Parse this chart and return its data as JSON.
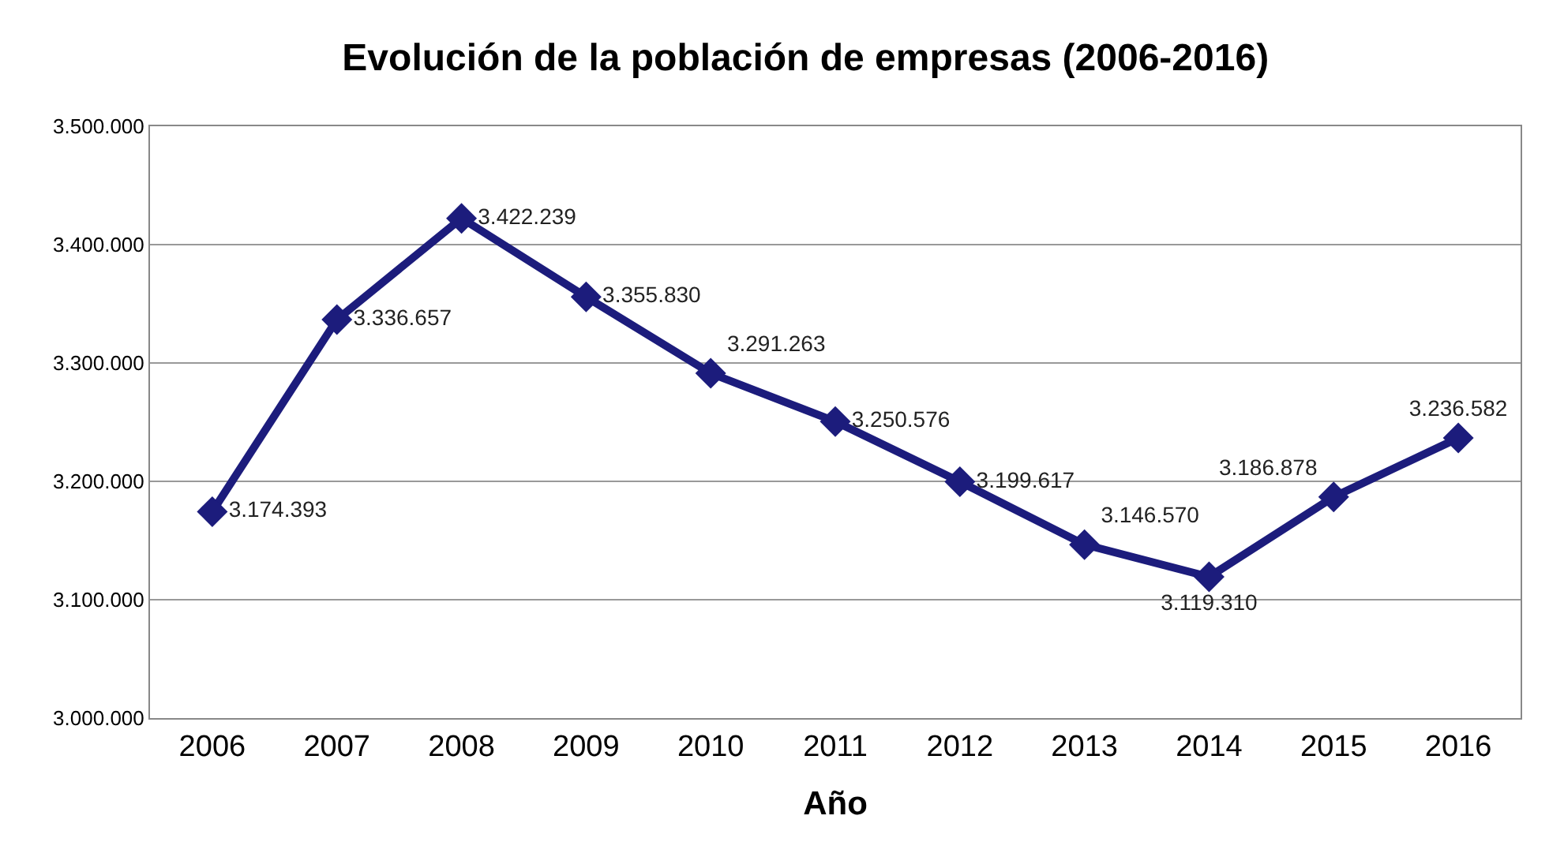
{
  "chart_data": {
    "type": "line",
    "title": "Evolución de la población de empresas (2006-2016)",
    "xlabel": "Año",
    "categories": [
      "2006",
      "2007",
      "2008",
      "2009",
      "2010",
      "2011",
      "2012",
      "2013",
      "2014",
      "2015",
      "2016"
    ],
    "series": [
      {
        "color": "#1c1c7c",
        "values": [
          3174393,
          3336657,
          3422239,
          3355830,
          3291263,
          3250576,
          3199617,
          3146570,
          3119310,
          3186878,
          3236582
        ],
        "value_labels": [
          "3.174.393",
          "3.336.657",
          "3.422.239",
          "3.355.830",
          "3.291.263",
          "3.250.576",
          "3.199.617",
          "3.146.570",
          "3.119.310",
          "3.186.878",
          "3.236.582"
        ]
      }
    ],
    "ylim": [
      3000000,
      3500000
    ],
    "yticks": [
      {
        "value": 3000000,
        "label": "3.000.000"
      },
      {
        "value": 3100000,
        "label": "3.100.000"
      },
      {
        "value": 3200000,
        "label": "3.200.000"
      },
      {
        "value": 3300000,
        "label": "3.300.000"
      },
      {
        "value": 3400000,
        "label": "3.400.000"
      },
      {
        "value": 3500000,
        "label": "3.500.000"
      }
    ],
    "grid": "y",
    "marker": "diamond",
    "line_style": "solid"
  }
}
